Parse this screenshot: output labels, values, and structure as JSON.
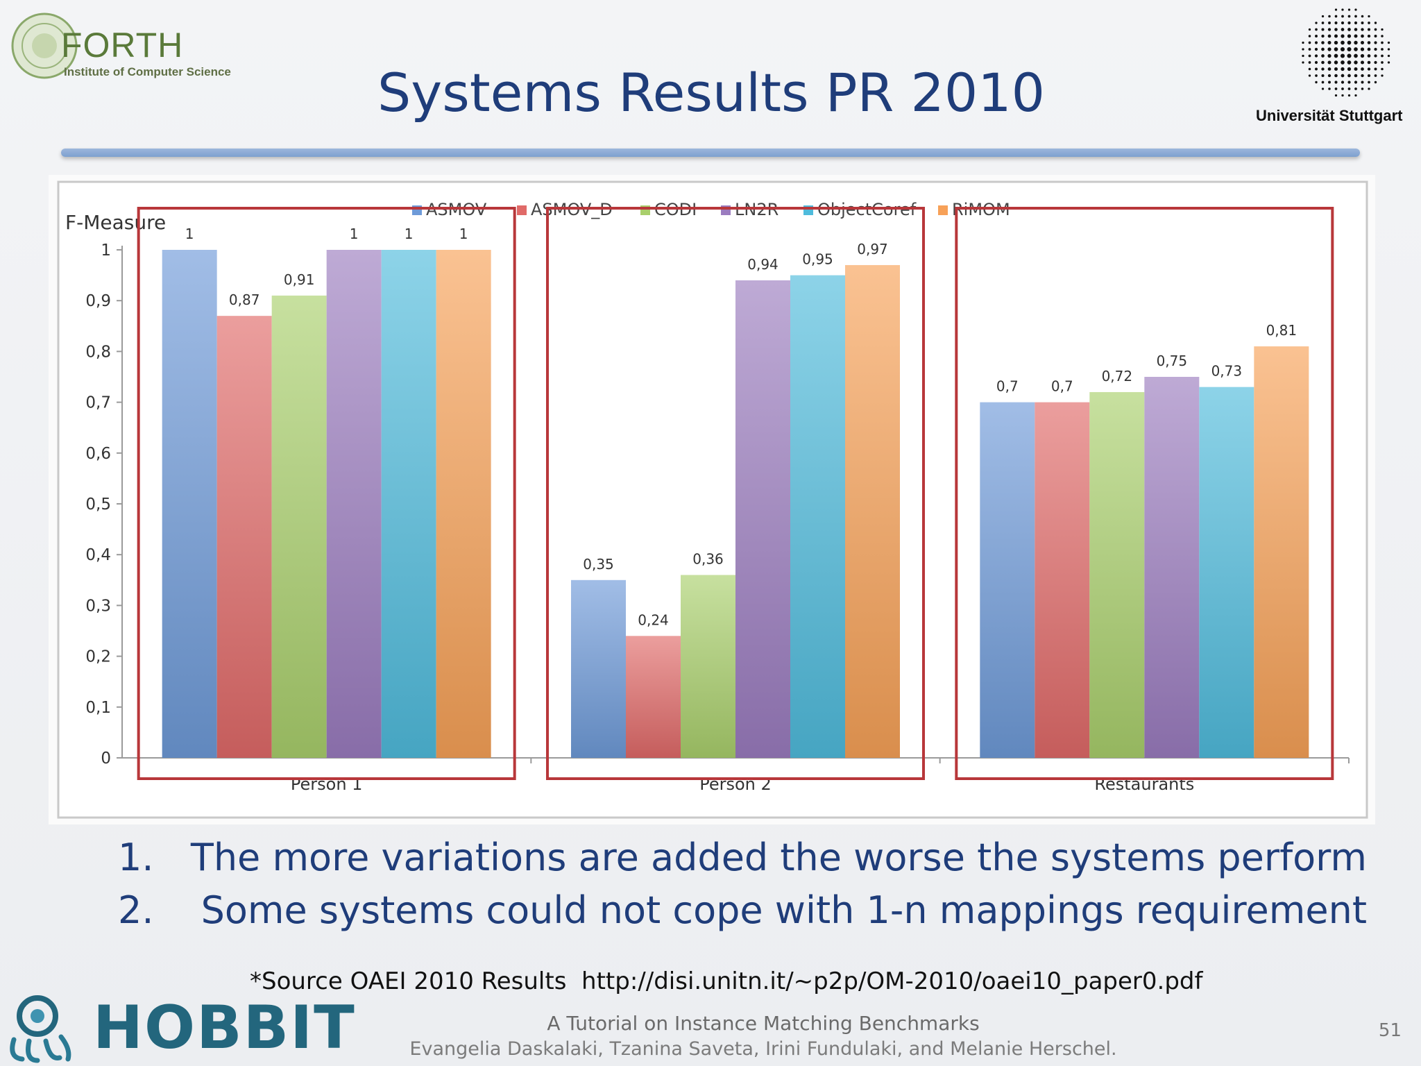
{
  "header": {
    "title": "Systems Results PR 2010",
    "forth_logo": {
      "name": "FORTH",
      "subtitle": "Institute of Computer Science"
    },
    "university_logo": {
      "name": "Universität Stuttgart"
    }
  },
  "chart_data": {
    "type": "bar",
    "title": "",
    "xlabel": "",
    "ylabel": "F-Measure",
    "ylim": [
      0,
      1
    ],
    "yticks": [
      "0",
      "0,1",
      "0,2",
      "0,3",
      "0,4",
      "0,5",
      "0,6",
      "0,7",
      "0,8",
      "0,9",
      "1"
    ],
    "grid": false,
    "legend": "top",
    "categories": [
      "Person 1",
      "Person 2",
      "Restaurants"
    ],
    "series": [
      {
        "name": "ASMOV",
        "color": "#6e9ad8",
        "values": [
          1,
          0.35,
          0.7
        ],
        "labels": [
          "1",
          "0,35",
          "0,7"
        ]
      },
      {
        "name": "ASMOV_D",
        "color": "#e06a68",
        "values": [
          0.87,
          0.24,
          0.7
        ],
        "labels": [
          "0,87",
          "0,24",
          "0,7"
        ]
      },
      {
        "name": "CODI",
        "color": "#a9cf6c",
        "values": [
          0.91,
          0.36,
          0.72
        ],
        "labels": [
          "0,91",
          "0,36",
          "0,72"
        ]
      },
      {
        "name": "LN2R",
        "color": "#9b7cbf",
        "values": [
          1,
          0.94,
          0.75
        ],
        "labels": [
          "1",
          "0,94",
          "0,75"
        ]
      },
      {
        "name": "ObjectCoref",
        "color": "#4fbbdc",
        "values": [
          1,
          0.95,
          0.73
        ],
        "labels": [
          "1",
          "0,95",
          "0,73"
        ]
      },
      {
        "name": "RiMOM",
        "color": "#f7a158",
        "values": [
          1,
          0.97,
          0.81
        ],
        "labels": [
          "1",
          "0,97",
          "0,81"
        ]
      }
    ]
  },
  "points": [
    {
      "num": "1.",
      "text": "The more variations are added the worse the systems perform"
    },
    {
      "num": "2.",
      "text": "Some systems could not cope with 1-n mappings requirement"
    }
  ],
  "source": "*Source OAEI 2010 Results  http://disi.unitn.it/~p2p/OM-2010/oaei10_paper0.pdf",
  "footer": {
    "logo": "HOBBIT",
    "line1": "A Tutorial on Instance Matching Benchmarks",
    "line2": "Evangelia Daskalaki, Tzanina Saveta, Irini Fundulaki, and Melanie Herschel.",
    "page_number": "51"
  }
}
